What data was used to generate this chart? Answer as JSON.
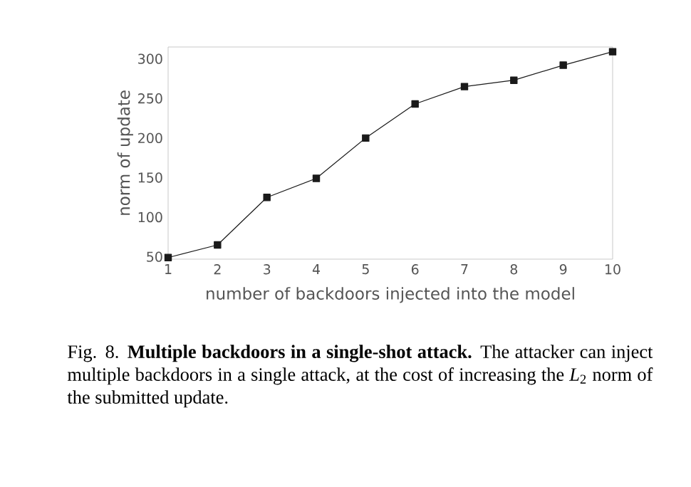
{
  "chart_data": {
    "type": "line",
    "xlabel": "number of backdoors injected into the model",
    "ylabel": "norm of update",
    "x": [
      1,
      2,
      3,
      4,
      5,
      6,
      7,
      8,
      9,
      10
    ],
    "series": [
      {
        "color": "#1a1a1a",
        "values": [
          49,
          65,
          125,
          149,
          200,
          243,
          265,
          273,
          292,
          309
        ]
      }
    ],
    "xlim": [
      1,
      10
    ],
    "xticks": [
      1,
      2,
      3,
      4,
      5,
      6,
      7,
      8,
      9,
      10
    ],
    "ylim": [
      47,
      315
    ],
    "yticks": [
      50,
      100,
      150,
      200,
      250,
      300
    ],
    "marker": "square",
    "line_style": "solid",
    "grid": false,
    "annotations": [
      "Fig. 8. **Multiple backdoors in a single-shot attack.** The attacker can inject multiple backdoors in a single attack, at the cost of increasing the *L*$_{2}$ norm of the submitted update."
    ]
  }
}
